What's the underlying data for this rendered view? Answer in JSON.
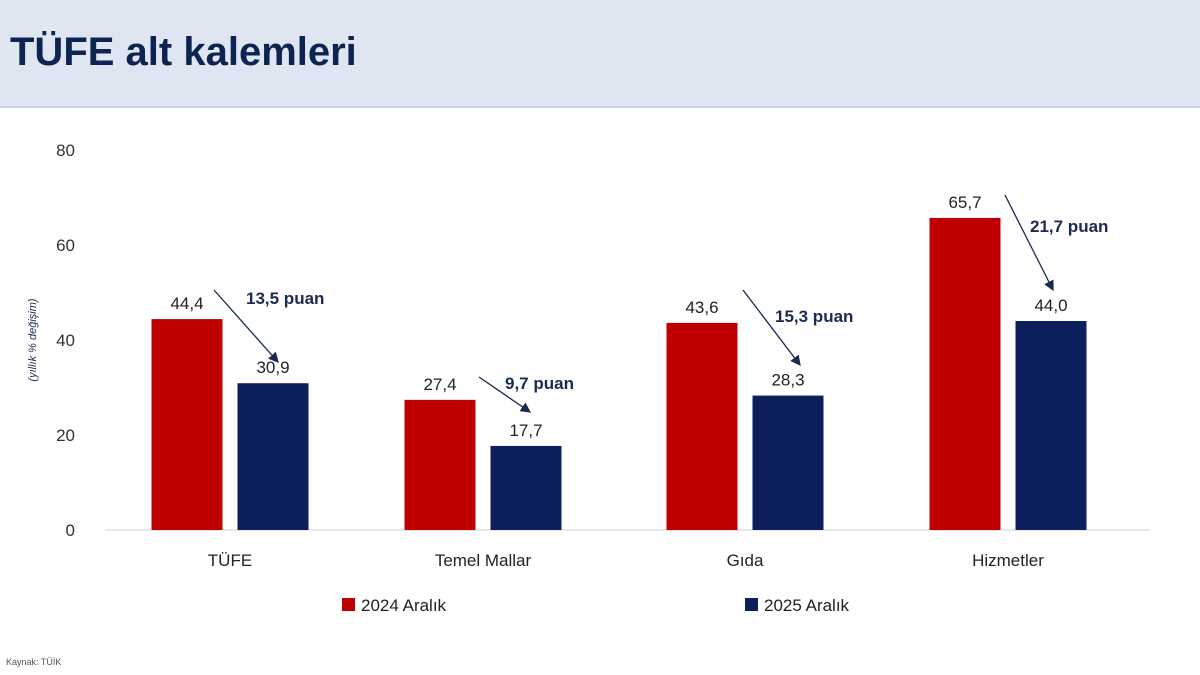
{
  "header": {
    "title": "TÜFE alt kalemleri"
  },
  "source": "Kaynak: TÜİK",
  "chart_data": {
    "type": "bar",
    "title": "",
    "ylabel": "(yıllık % değişim)",
    "ylim": [
      0,
      80
    ],
    "yticks": [
      0,
      20,
      40,
      60,
      80
    ],
    "grid": false,
    "legend": "bottom",
    "categories": [
      "TÜFE",
      "Temel Mallar",
      "Gıda",
      "Hizmetler"
    ],
    "series": [
      {
        "name": "2024 Aralık",
        "color": "#c00000",
        "values": [
          44.4,
          27.4,
          43.6,
          65.7
        ],
        "labels": [
          "44,4",
          "27,4",
          "43,6",
          "65,7"
        ]
      },
      {
        "name": "2025 Aralık",
        "color": "#0d1f5c",
        "values": [
          30.9,
          17.7,
          28.3,
          44.0
        ],
        "labels": [
          "30,9",
          "17,7",
          "28,3",
          "44,0"
        ]
      }
    ],
    "annotations": [
      "13,5 puan",
      "9,7 puan",
      "15,3 puan",
      "21,7 puan"
    ]
  }
}
